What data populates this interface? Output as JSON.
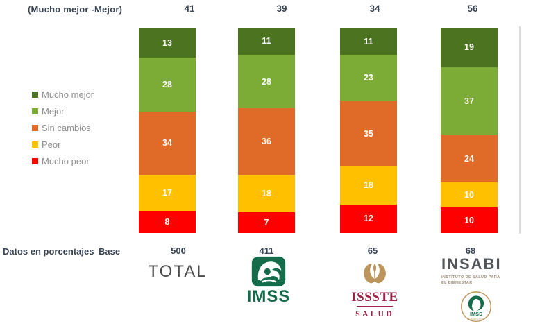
{
  "header": {
    "label": "(Mucho mejor -Mejor)"
  },
  "chart_data": {
    "type": "bar",
    "stacked": true,
    "percent": true,
    "categories": [
      "TOTAL",
      "IMSS",
      "ISSSTE SALUD",
      "INSABI"
    ],
    "series": [
      {
        "name": "Mucho mejor",
        "color": "#4C7320",
        "values": [
          13,
          11,
          11,
          19
        ]
      },
      {
        "name": "Mejor",
        "color": "#7CAB36",
        "values": [
          28,
          28,
          23,
          37
        ]
      },
      {
        "name": "Sin cambios",
        "color": "#E06B28",
        "values": [
          34,
          36,
          35,
          24
        ]
      },
      {
        "name": "Peor",
        "color": "#FFC000",
        "values": [
          17,
          18,
          18,
          10
        ]
      },
      {
        "name": "Mucho peor",
        "color": "#FF0000",
        "values": [
          8,
          7,
          12,
          10
        ]
      }
    ],
    "top_totals_label": "(Mucho mejor -Mejor)",
    "top_totals": [
      41,
      39,
      34,
      56
    ],
    "bases": [
      500,
      411,
      65,
      68
    ],
    "ylim": [
      0,
      100
    ],
    "units": "percent",
    "legend_position": "left",
    "grid": false
  },
  "legend": {
    "items": [
      {
        "label": "Mucho mejor",
        "color": "#4C7320"
      },
      {
        "label": "Mejor",
        "color": "#7CAB36"
      },
      {
        "label": "Sin cambios",
        "color": "#E06B28"
      },
      {
        "label": "Peor",
        "color": "#FFC000"
      },
      {
        "label": "Mucho peor",
        "color": "#FF0000"
      }
    ]
  },
  "footer": {
    "note": "Datos en porcentajes",
    "base_label": "Base",
    "total_label": "TOTAL"
  },
  "logos": {
    "imss": {
      "text": "IMSS"
    },
    "issste": {
      "text": "ISSSTE",
      "subtext": "SALUD"
    },
    "insabi": {
      "title": "INSABI",
      "subtitle_line1": "INSTITUTO DE SALUD PARA",
      "subtitle_line2": "EL BIENESTAR",
      "badge_text": "IMSS",
      "badge_subtext": "BIENESTAR"
    }
  },
  "colors": {
    "header_text": "#3A4656",
    "legend_text": "#8f9092",
    "total_text": "#4d4d4d",
    "imss_green": "#146C4A",
    "gov_maroon": "#9D2449",
    "gov_gold": "#BC955C",
    "divider_line": "#dbdbdb"
  },
  "layout_values": {
    "bar_lefts": [
      200,
      343,
      490,
      635
    ],
    "total_lefts": [
      232,
      365,
      499,
      640
    ],
    "base_lefts": [
      216,
      343,
      496,
      637
    ]
  }
}
